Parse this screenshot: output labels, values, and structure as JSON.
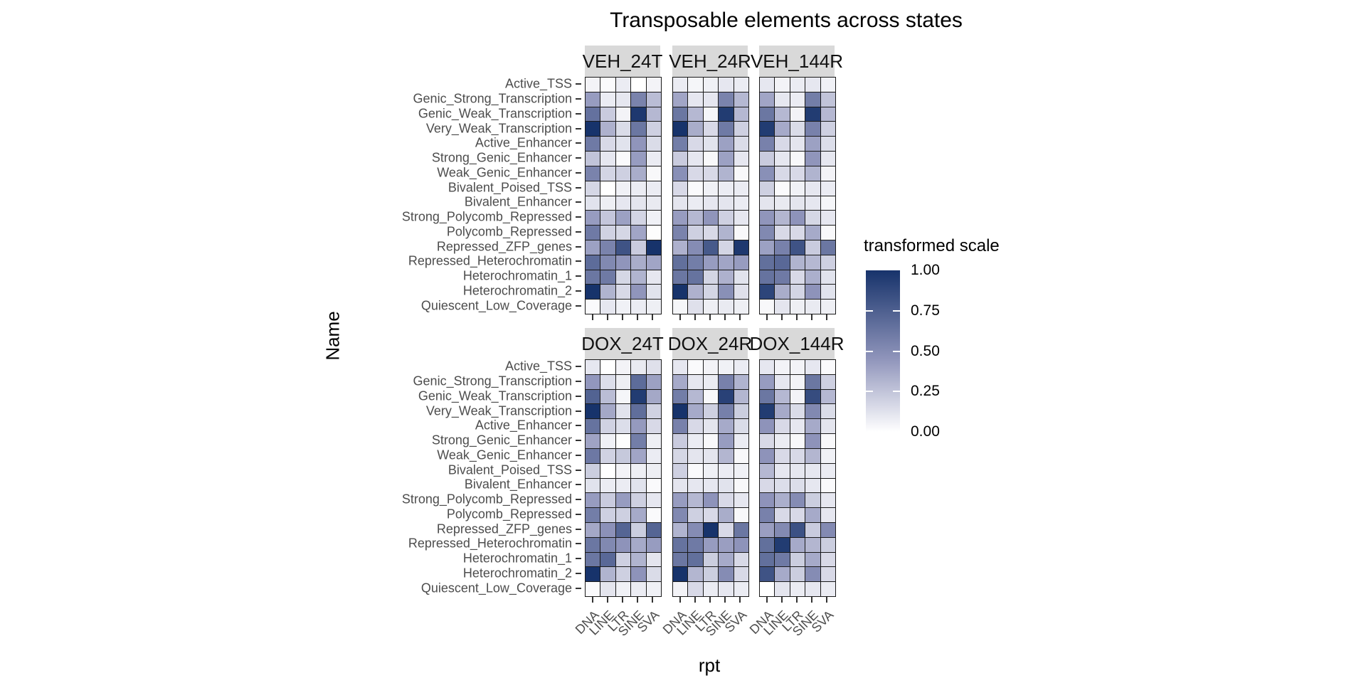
{
  "title": "Transposable elements across states",
  "axes": {
    "x_title": "rpt",
    "y_title": "Name"
  },
  "legend": {
    "title": "transformed scale",
    "ticks": [
      {
        "label": "1.00",
        "value": 1.0
      },
      {
        "label": "0.75",
        "value": 0.75
      },
      {
        "label": "0.50",
        "value": 0.5
      },
      {
        "label": "0.25",
        "value": 0.25
      },
      {
        "label": "0.00",
        "value": 0.0
      }
    ],
    "high_color": "#17336B",
    "mid_color": "#9095BB",
    "low_color": "#FFFFFF",
    "position": "right"
  },
  "chart_data": {
    "type": "heatmap",
    "title": "Transposable elements across states",
    "xlabel": "rpt",
    "ylabel": "Name",
    "value_scale_label": "transformed scale",
    "value_range": [
      0,
      1
    ],
    "grid": "off",
    "x_categories": [
      "DNA",
      "LINE",
      "LTR",
      "SINE",
      "SVA"
    ],
    "y_categories": [
      "Active_TSS",
      "Genic_Strong_Transcription",
      "Genic_Weak_Transcription",
      "Very_Weak_Transcription",
      "Active_Enhancer",
      "Strong_Genic_Enhancer",
      "Weak_Genic_Enhancer",
      "Bivalent_Poised_TSS",
      "Bivalent_Enhancer",
      "Strong_Polycomb_Repressed",
      "Polycomb_Repressed",
      "Repressed_ZFP_genes",
      "Repressed_Heterochromatin",
      "Heterochromatin_1",
      "Heterochromatin_2",
      "Quiescent_Low_Coverage"
    ],
    "facets": [
      {
        "name": "VEH_24T",
        "grid_row": 0,
        "grid_col": 0,
        "values": [
          [
            0.05,
            0.02,
            0.08,
            0.0,
            0.05
          ],
          [
            0.42,
            0.08,
            0.1,
            0.55,
            0.28
          ],
          [
            0.65,
            0.22,
            0.05,
            0.97,
            0.3
          ],
          [
            1.0,
            0.33,
            0.15,
            0.62,
            0.2
          ],
          [
            0.6,
            0.16,
            0.12,
            0.45,
            0.15
          ],
          [
            0.25,
            0.1,
            0.02,
            0.42,
            0.08
          ],
          [
            0.55,
            0.18,
            0.2,
            0.35,
            0.03
          ],
          [
            0.17,
            0.0,
            0.06,
            0.08,
            0.08
          ],
          [
            0.12,
            0.07,
            0.1,
            0.11,
            0.09
          ],
          [
            0.42,
            0.24,
            0.4,
            0.18,
            0.06
          ],
          [
            0.6,
            0.19,
            0.17,
            0.38,
            0.01
          ],
          [
            0.4,
            0.55,
            0.82,
            0.22,
            1.0
          ],
          [
            0.68,
            0.52,
            0.45,
            0.35,
            0.38
          ],
          [
            0.62,
            0.6,
            0.17,
            0.32,
            0.1
          ],
          [
            1.0,
            0.32,
            0.16,
            0.45,
            0.12
          ],
          [
            0.02,
            0.1,
            0.06,
            0.08,
            0.07
          ]
        ]
      },
      {
        "name": "VEH_24R",
        "grid_row": 0,
        "grid_col": 1,
        "values": [
          [
            0.08,
            0.04,
            0.06,
            0.1,
            0.08
          ],
          [
            0.38,
            0.1,
            0.1,
            0.55,
            0.3
          ],
          [
            0.62,
            0.3,
            0.04,
            0.95,
            0.3
          ],
          [
            1.0,
            0.35,
            0.16,
            0.6,
            0.2
          ],
          [
            0.58,
            0.16,
            0.12,
            0.4,
            0.15
          ],
          [
            0.22,
            0.1,
            0.03,
            0.4,
            0.1
          ],
          [
            0.48,
            0.16,
            0.16,
            0.32,
            0.03
          ],
          [
            0.16,
            0.02,
            0.06,
            0.08,
            0.08
          ],
          [
            0.11,
            0.08,
            0.1,
            0.11,
            0.08
          ],
          [
            0.42,
            0.3,
            0.45,
            0.2,
            0.1
          ],
          [
            0.55,
            0.2,
            0.16,
            0.32,
            0.03
          ],
          [
            0.33,
            0.5,
            0.78,
            0.18,
            0.97
          ],
          [
            0.66,
            0.58,
            0.42,
            0.38,
            0.42
          ],
          [
            0.62,
            0.64,
            0.18,
            0.33,
            0.12
          ],
          [
            1.0,
            0.33,
            0.18,
            0.48,
            0.13
          ],
          [
            0.04,
            0.13,
            0.07,
            0.09,
            0.07
          ]
        ]
      },
      {
        "name": "VEH_144R",
        "grid_row": 0,
        "grid_col": 2,
        "values": [
          [
            0.1,
            0.05,
            0.08,
            0.1,
            0.06
          ],
          [
            0.38,
            0.1,
            0.08,
            0.58,
            0.25
          ],
          [
            0.62,
            0.3,
            0.05,
            0.95,
            0.3
          ],
          [
            0.95,
            0.36,
            0.15,
            0.56,
            0.2
          ],
          [
            0.56,
            0.16,
            0.11,
            0.4,
            0.14
          ],
          [
            0.22,
            0.1,
            0.03,
            0.45,
            0.1
          ],
          [
            0.48,
            0.16,
            0.16,
            0.32,
            0.05
          ],
          [
            0.2,
            0.02,
            0.06,
            0.1,
            0.08
          ],
          [
            0.11,
            0.09,
            0.11,
            0.1,
            0.04
          ],
          [
            0.45,
            0.31,
            0.46,
            0.17,
            0.1
          ],
          [
            0.52,
            0.16,
            0.16,
            0.36,
            0.03
          ],
          [
            0.4,
            0.56,
            0.82,
            0.22,
            0.62
          ],
          [
            0.66,
            0.7,
            0.32,
            0.3,
            0.2
          ],
          [
            0.64,
            0.6,
            0.16,
            0.34,
            0.12
          ],
          [
            0.9,
            0.35,
            0.18,
            0.46,
            0.12
          ],
          [
            0.03,
            0.11,
            0.07,
            0.09,
            0.07
          ]
        ]
      },
      {
        "name": "DOX_24T",
        "grid_row": 1,
        "grid_col": 0,
        "values": [
          [
            0.1,
            0.0,
            0.05,
            0.09,
            0.13
          ],
          [
            0.44,
            0.14,
            0.07,
            0.68,
            0.4
          ],
          [
            0.73,
            0.28,
            0.04,
            0.95,
            0.37
          ],
          [
            1.0,
            0.37,
            0.12,
            0.67,
            0.19
          ],
          [
            0.64,
            0.19,
            0.14,
            0.43,
            0.16
          ],
          [
            0.39,
            0.06,
            0.01,
            0.58,
            0.07
          ],
          [
            0.61,
            0.19,
            0.23,
            0.38,
            0.08
          ],
          [
            0.21,
            0.0,
            0.05,
            0.07,
            0.07
          ],
          [
            0.12,
            0.08,
            0.08,
            0.12,
            0.02
          ],
          [
            0.42,
            0.22,
            0.42,
            0.2,
            0.1
          ],
          [
            0.58,
            0.2,
            0.2,
            0.36,
            0.02
          ],
          [
            0.37,
            0.47,
            0.72,
            0.21,
            0.72
          ],
          [
            0.62,
            0.52,
            0.46,
            0.36,
            0.42
          ],
          [
            0.62,
            0.7,
            0.2,
            0.32,
            0.11
          ],
          [
            1.0,
            0.32,
            0.2,
            0.46,
            0.15
          ],
          [
            0.02,
            0.11,
            0.06,
            0.08,
            0.06
          ]
        ]
      },
      {
        "name": "DOX_24R",
        "grid_row": 1,
        "grid_col": 1,
        "values": [
          [
            0.1,
            0.02,
            0.05,
            0.06,
            0.08
          ],
          [
            0.36,
            0.1,
            0.08,
            0.56,
            0.32
          ],
          [
            0.58,
            0.3,
            0.03,
            0.92,
            0.31
          ],
          [
            1.0,
            0.36,
            0.2,
            0.57,
            0.21
          ],
          [
            0.56,
            0.16,
            0.11,
            0.36,
            0.15
          ],
          [
            0.22,
            0.08,
            0.03,
            0.42,
            0.08
          ],
          [
            0.17,
            0.11,
            0.11,
            0.31,
            0.03
          ],
          [
            0.2,
            0.02,
            0.06,
            0.08,
            0.06
          ],
          [
            0.11,
            0.1,
            0.1,
            0.12,
            0.03
          ],
          [
            0.42,
            0.3,
            0.46,
            0.16,
            0.1
          ],
          [
            0.52,
            0.2,
            0.16,
            0.35,
            0.03
          ],
          [
            0.32,
            0.5,
            1.0,
            0.16,
            0.62
          ],
          [
            0.64,
            0.6,
            0.42,
            0.41,
            0.46
          ],
          [
            0.62,
            0.66,
            0.21,
            0.36,
            0.16
          ],
          [
            1.0,
            0.31,
            0.21,
            0.5,
            0.16
          ],
          [
            0.05,
            0.16,
            0.08,
            0.1,
            0.08
          ]
        ]
      },
      {
        "name": "DOX_144R",
        "grid_row": 1,
        "grid_col": 2,
        "values": [
          [
            0.1,
            0.05,
            0.05,
            0.1,
            0.02
          ],
          [
            0.42,
            0.1,
            0.05,
            0.62,
            0.2
          ],
          [
            0.62,
            0.3,
            0.05,
            0.86,
            0.3
          ],
          [
            0.95,
            0.36,
            0.15,
            0.52,
            0.15
          ],
          [
            0.46,
            0.16,
            0.1,
            0.36,
            0.11
          ],
          [
            0.16,
            0.08,
            0.03,
            0.46,
            0.03
          ],
          [
            0.46,
            0.16,
            0.16,
            0.31,
            0.06
          ],
          [
            0.3,
            0.1,
            0.1,
            0.1,
            0.08
          ],
          [
            0.16,
            0.14,
            0.14,
            0.1,
            0.02
          ],
          [
            0.46,
            0.34,
            0.5,
            0.21,
            0.1
          ],
          [
            0.56,
            0.16,
            0.16,
            0.36,
            0.1
          ],
          [
            0.41,
            0.51,
            0.83,
            0.22,
            0.51
          ],
          [
            0.66,
            0.95,
            0.36,
            0.31,
            0.21
          ],
          [
            0.66,
            0.6,
            0.21,
            0.36,
            0.16
          ],
          [
            0.82,
            0.36,
            0.21,
            0.5,
            0.16
          ],
          [
            0.0,
            0.11,
            0.08,
            0.1,
            0.08
          ]
        ]
      }
    ]
  }
}
